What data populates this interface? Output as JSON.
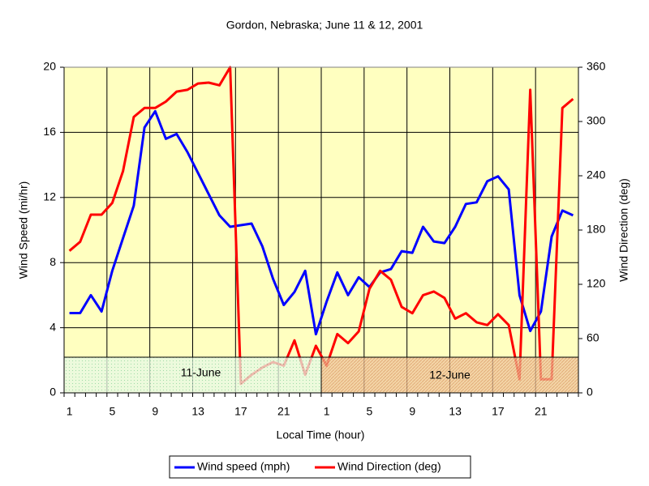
{
  "chart_data": {
    "type": "line",
    "title": "Gordon, Nebraska; June 11 & 12, 2001",
    "xlabel": "Local Time (hour)",
    "ylabel": "Wind Speed (mi/hr)",
    "y2label": "Wind Direction (deg)",
    "annotations": [
      "11-June",
      "12-June"
    ],
    "categories": [
      "1",
      null,
      null,
      null,
      "5",
      null,
      null,
      null,
      "9",
      null,
      null,
      null,
      "13",
      null,
      null,
      null,
      "17",
      null,
      null,
      null,
      "21",
      null,
      null,
      null,
      "1",
      null,
      null,
      null,
      "5",
      null,
      null,
      null,
      "9",
      null,
      null,
      null,
      "13",
      null,
      null,
      null,
      "17",
      null,
      null,
      null,
      "21",
      null,
      null,
      null
    ],
    "series": [
      {
        "name": "Wind speed (mph)",
        "color": "#0000ff",
        "values": [
          4.9,
          4.9,
          6.0,
          5.0,
          7.5,
          9.5,
          11.5,
          16.3,
          17.3,
          15.6,
          15.9,
          14.8,
          13.5,
          12.2,
          10.9,
          10.2,
          10.3,
          10.4,
          9.0,
          7.0,
          5.4,
          6.2,
          7.5,
          3.6,
          5.6,
          7.4,
          6.0,
          7.1,
          6.5,
          7.4,
          7.6,
          8.7,
          8.6,
          10.2,
          9.3,
          9.2,
          10.2,
          11.6,
          11.7,
          13.0,
          13.3,
          12.5,
          6.0,
          3.8,
          5.0,
          9.6,
          11.2,
          10.9
        ]
      },
      {
        "name": "Wind Direction (deg)",
        "color": "#ff0000",
        "axis": "y2",
        "values": [
          157,
          167,
          197,
          197,
          210,
          245,
          305,
          315,
          315,
          322,
          333,
          335,
          342,
          343,
          340,
          360,
          10,
          20,
          28,
          34,
          30,
          58,
          20,
          52,
          30,
          65,
          55,
          68,
          115,
          135,
          125,
          95,
          88,
          108,
          112,
          105,
          82,
          88,
          78,
          75,
          87,
          75,
          15,
          335,
          15,
          15,
          315,
          325
        ]
      }
    ],
    "ylim": [
      0,
      20
    ],
    "yticks": [
      0,
      4,
      8,
      12,
      16,
      20
    ],
    "y2lim": [
      0,
      360
    ],
    "y2ticks": [
      0,
      60,
      120,
      180,
      240,
      300,
      360
    ],
    "grid": true,
    "legend": "bottom"
  }
}
